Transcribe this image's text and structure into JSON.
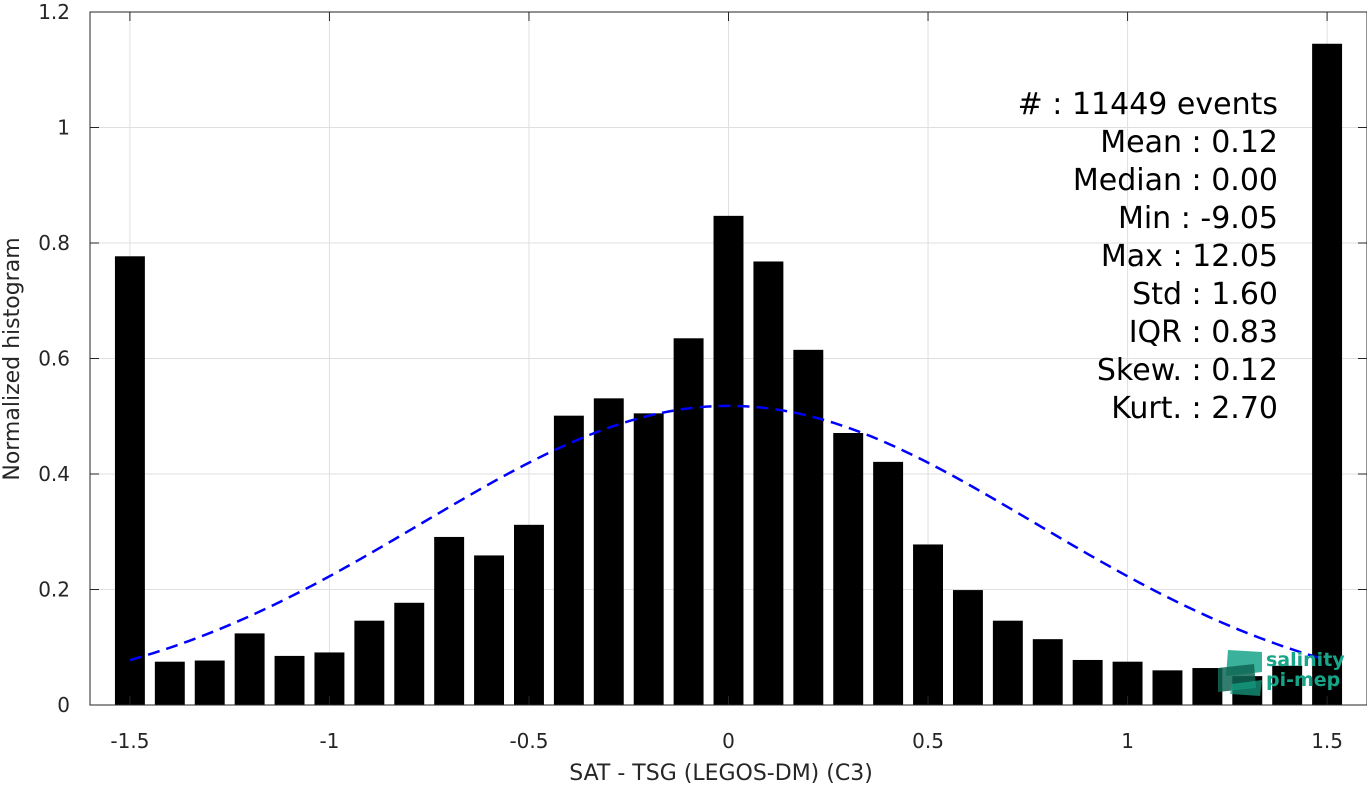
{
  "chart_data": {
    "type": "bar",
    "xlabel": "SAT - TSG (LEGOS-DM) (C3)",
    "ylabel": "Normalized histogram",
    "xlim": [
      -1.6,
      1.6
    ],
    "ylim": [
      0,
      1.2
    ],
    "x_ticks": [
      "-1.5",
      "-1",
      "-0.5",
      "0",
      "0.5",
      "1",
      "1.5"
    ],
    "x_tick_values": [
      -1.5,
      -1,
      -0.5,
      0,
      0.5,
      1,
      1.5
    ],
    "y_ticks": [
      "0",
      "0.2",
      "0.4",
      "0.6",
      "0.8",
      "1",
      "1.2"
    ],
    "y_tick_values": [
      0,
      0.2,
      0.4,
      0.6,
      0.8,
      1.0,
      1.2
    ],
    "grid": true,
    "bar_color": "#000000",
    "bar_width": 0.075,
    "bins": [
      -1.5,
      -1.4,
      -1.3,
      -1.2,
      -1.1,
      -1.0,
      -0.9,
      -0.8,
      -0.7,
      -0.6,
      -0.5,
      -0.4,
      -0.3,
      -0.2,
      -0.1,
      0.0,
      0.1,
      0.2,
      0.3,
      0.4,
      0.5,
      0.6,
      0.7,
      0.8,
      0.9,
      1.0,
      1.1,
      1.2,
      1.3,
      1.4,
      1.5
    ],
    "values": [
      0.777,
      0.075,
      0.077,
      0.124,
      0.085,
      0.091,
      0.146,
      0.177,
      0.291,
      0.259,
      0.312,
      0.501,
      0.531,
      0.505,
      0.635,
      0.847,
      0.768,
      0.615,
      0.471,
      0.421,
      0.278,
      0.199,
      0.146,
      0.114,
      0.078,
      0.075,
      0.06,
      0.064,
      0.05,
      0.068,
      1.145
    ],
    "fit_curve": {
      "type": "gaussian",
      "style": "dashed",
      "color": "#0000ff",
      "x_range": [
        -1.5,
        1.5
      ],
      "peak": 0.518,
      "mean": 0.0,
      "sigma": 0.77
    },
    "annotations": [
      "#  : 11449 events",
      "Mean : 0.12",
      "Median : 0.00",
      "Min : -9.05",
      "Max : 12.05",
      "Std : 1.60",
      "IQR : 0.83",
      "Skew. : 0.12",
      "Kurt. : 2.70"
    ]
  },
  "logo": {
    "line1": "salinity",
    "line2": "pi-mep",
    "color": "#17a589"
  }
}
